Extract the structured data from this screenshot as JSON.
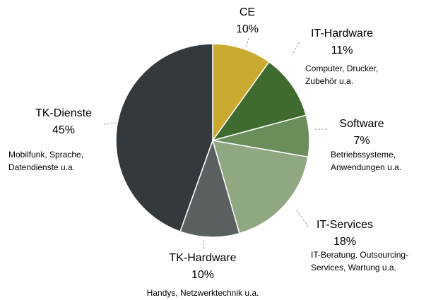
{
  "chart_data": {
    "type": "pie",
    "categories": [
      "CE",
      "IT-Hardware",
      "Software",
      "IT-Services",
      "TK-Hardware",
      "TK-Dienste"
    ],
    "values": [
      10,
      11,
      7,
      18,
      10,
      45
    ],
    "value_labels": [
      "10%",
      "11%",
      "7%",
      "18%",
      "10%",
      "45%"
    ],
    "descriptions": [
      null,
      [
        "Computer, Drucker,",
        "Zubehör u.a."
      ],
      [
        "Betriebssysteme,",
        "Anwendungen u.a."
      ],
      [
        "IT-Beratung, Outsourcing-",
        "Services, Wartung u.a."
      ],
      [
        "Handys, Netzwerktechnik u.a."
      ],
      [
        "Mobilfunk, Sprache,",
        "Datendienste u.a."
      ]
    ],
    "colors": [
      "#c9a92f",
      "#3f6b2e",
      "#6a8d5a",
      "#8fa882",
      "#5a5f60",
      "#33393c"
    ]
  }
}
